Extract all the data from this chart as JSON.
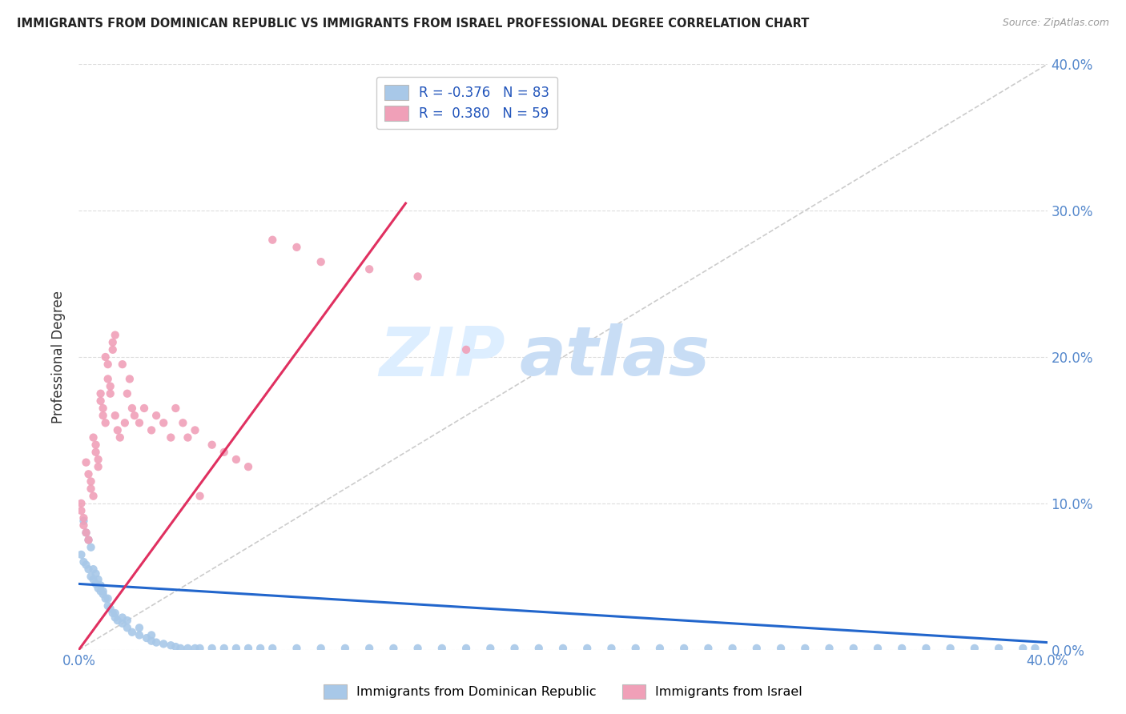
{
  "title": "IMMIGRANTS FROM DOMINICAN REPUBLIC VS IMMIGRANTS FROM ISRAEL PROFESSIONAL DEGREE CORRELATION CHART",
  "source": "Source: ZipAtlas.com",
  "ylabel": "Professional Degree",
  "xlim": [
    0.0,
    0.4
  ],
  "ylim": [
    0.0,
    0.4
  ],
  "watermark_zip": "ZIP",
  "watermark_atlas": "atlas",
  "blue_color": "#a8c8e8",
  "pink_color": "#f0a0b8",
  "blue_line_color": "#2266cc",
  "pink_line_color": "#e03060",
  "diagonal_color": "#cccccc",
  "background_color": "#ffffff",
  "grid_color": "#dddddd",
  "legend_blue_R": "R = -0.376",
  "legend_blue_N": "N = 83",
  "legend_pink_R": "R =  0.380",
  "legend_pink_N": "N = 59",
  "label_blue": "Immigrants from Dominican Republic",
  "label_pink": "Immigrants from Israel",
  "blue_scatter_x": [
    0.001,
    0.002,
    0.003,
    0.004,
    0.005,
    0.006,
    0.007,
    0.008,
    0.009,
    0.01,
    0.011,
    0.012,
    0.013,
    0.014,
    0.015,
    0.016,
    0.018,
    0.02,
    0.022,
    0.025,
    0.028,
    0.03,
    0.032,
    0.035,
    0.038,
    0.04,
    0.042,
    0.045,
    0.048,
    0.05,
    0.055,
    0.06,
    0.065,
    0.07,
    0.075,
    0.08,
    0.09,
    0.1,
    0.11,
    0.12,
    0.13,
    0.14,
    0.15,
    0.16,
    0.17,
    0.18,
    0.19,
    0.2,
    0.21,
    0.22,
    0.23,
    0.24,
    0.25,
    0.26,
    0.27,
    0.28,
    0.29,
    0.3,
    0.31,
    0.32,
    0.33,
    0.34,
    0.35,
    0.36,
    0.37,
    0.38,
    0.39,
    0.395,
    0.002,
    0.003,
    0.004,
    0.005,
    0.006,
    0.007,
    0.008,
    0.009,
    0.01,
    0.012,
    0.015,
    0.018,
    0.02,
    0.025,
    0.03
  ],
  "blue_scatter_y": [
    0.065,
    0.06,
    0.058,
    0.055,
    0.05,
    0.048,
    0.045,
    0.042,
    0.04,
    0.038,
    0.035,
    0.03,
    0.028,
    0.025,
    0.022,
    0.02,
    0.018,
    0.015,
    0.012,
    0.01,
    0.008,
    0.006,
    0.005,
    0.004,
    0.003,
    0.002,
    0.001,
    0.001,
    0.001,
    0.001,
    0.001,
    0.001,
    0.001,
    0.001,
    0.001,
    0.001,
    0.001,
    0.001,
    0.001,
    0.001,
    0.001,
    0.001,
    0.001,
    0.001,
    0.001,
    0.001,
    0.001,
    0.001,
    0.001,
    0.001,
    0.001,
    0.001,
    0.001,
    0.001,
    0.001,
    0.001,
    0.001,
    0.001,
    0.001,
    0.001,
    0.001,
    0.001,
    0.001,
    0.001,
    0.001,
    0.001,
    0.001,
    0.001,
    0.088,
    0.08,
    0.075,
    0.07,
    0.055,
    0.052,
    0.048,
    0.044,
    0.04,
    0.035,
    0.025,
    0.022,
    0.02,
    0.015,
    0.01
  ],
  "pink_scatter_x": [
    0.001,
    0.001,
    0.002,
    0.002,
    0.003,
    0.003,
    0.004,
    0.004,
    0.005,
    0.005,
    0.006,
    0.006,
    0.007,
    0.007,
    0.008,
    0.008,
    0.009,
    0.009,
    0.01,
    0.01,
    0.011,
    0.011,
    0.012,
    0.012,
    0.013,
    0.013,
    0.014,
    0.014,
    0.015,
    0.015,
    0.016,
    0.017,
    0.018,
    0.019,
    0.02,
    0.021,
    0.022,
    0.023,
    0.025,
    0.027,
    0.03,
    0.032,
    0.035,
    0.038,
    0.04,
    0.043,
    0.045,
    0.048,
    0.05,
    0.055,
    0.06,
    0.065,
    0.07,
    0.08,
    0.09,
    0.1,
    0.12,
    0.14,
    0.16
  ],
  "pink_scatter_y": [
    0.1,
    0.095,
    0.09,
    0.085,
    0.08,
    0.128,
    0.075,
    0.12,
    0.115,
    0.11,
    0.105,
    0.145,
    0.14,
    0.135,
    0.13,
    0.125,
    0.175,
    0.17,
    0.165,
    0.16,
    0.155,
    0.2,
    0.195,
    0.185,
    0.18,
    0.175,
    0.21,
    0.205,
    0.215,
    0.16,
    0.15,
    0.145,
    0.195,
    0.155,
    0.175,
    0.185,
    0.165,
    0.16,
    0.155,
    0.165,
    0.15,
    0.16,
    0.155,
    0.145,
    0.165,
    0.155,
    0.145,
    0.15,
    0.105,
    0.14,
    0.135,
    0.13,
    0.125,
    0.28,
    0.275,
    0.265,
    0.26,
    0.255,
    0.205
  ],
  "blue_trend_x": [
    0.0,
    0.4
  ],
  "blue_trend_y": [
    0.045,
    0.005
  ],
  "pink_trend_x": [
    0.0,
    0.135
  ],
  "pink_trend_y": [
    0.0,
    0.305
  ]
}
